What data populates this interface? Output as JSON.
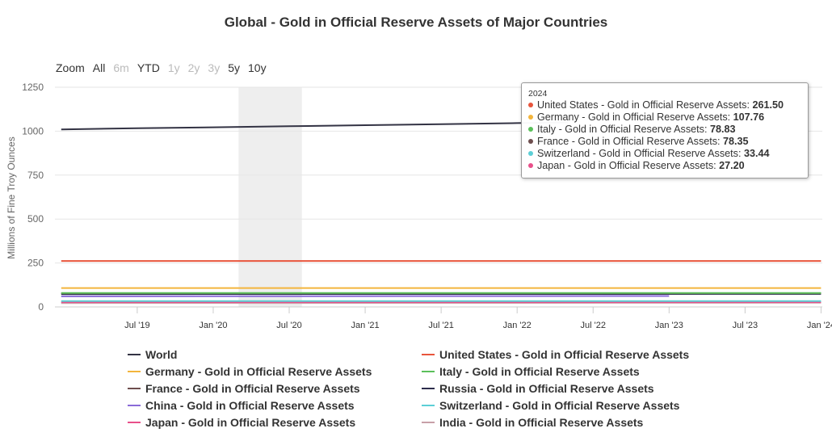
{
  "chart_data": {
    "type": "line",
    "title": "Global - Gold in Official Reserve Assets of Major Countries",
    "ylabel": "Millions of Fine Troy Ounces",
    "xlabel": "",
    "ylim": [
      0,
      1250
    ],
    "yticks": [
      "0",
      "250",
      "500",
      "750",
      "1000",
      "1250"
    ],
    "xticks": [
      "Jul '19",
      "Jan '20",
      "Jul '20",
      "Jan '21",
      "Jul '21",
      "Jan '22",
      "Jul '22",
      "Jan '23",
      "Jul '23",
      "Jan '24"
    ],
    "xrange": [
      "2019-01",
      "2024-01"
    ],
    "grid": true,
    "legend_position": "bottom",
    "series": [
      {
        "name": "World",
        "color": "#333344",
        "x": [
          "2019-01",
          "2019-07",
          "2020-01",
          "2020-07",
          "2021-01",
          "2021-07",
          "2022-01",
          "2022-05"
        ],
        "values": [
          1010,
          1017,
          1022,
          1028,
          1034,
          1040,
          1046,
          1050
        ]
      },
      {
        "name": "United States - Gold in Official Reserve Assets",
        "color": "#e8553c",
        "x": [
          "2019-01",
          "2024-01"
        ],
        "values": [
          261.5,
          261.5
        ]
      },
      {
        "name": "Germany - Gold in Official Reserve Assets",
        "color": "#f3b53c",
        "x": [
          "2019-01",
          "2024-01"
        ],
        "values": [
          107.76,
          107.76
        ]
      },
      {
        "name": "Italy - Gold in Official Reserve Assets",
        "color": "#5bc05b",
        "x": [
          "2019-01",
          "2024-01"
        ],
        "values": [
          78.83,
          78.83
        ]
      },
      {
        "name": "France - Gold in Official Reserve Assets",
        "color": "#6e4e4e",
        "x": [
          "2019-01",
          "2024-01"
        ],
        "values": [
          78.35,
          78.35
        ]
      },
      {
        "name": "Russia - Gold in Official Reserve Assets",
        "color": "#2c2c4c",
        "x": [
          "2019-01",
          "2024-01"
        ],
        "values": [
          73,
          74
        ]
      },
      {
        "name": "China - Gold in Official Reserve Assets",
        "color": "#8a6ad8",
        "x": [
          "2019-01",
          "2023-01"
        ],
        "values": [
          60,
          62
        ]
      },
      {
        "name": "Switzerland - Gold in Official Reserve Assets",
        "color": "#5ccfd6",
        "x": [
          "2019-01",
          "2024-01"
        ],
        "values": [
          33.44,
          33.44
        ]
      },
      {
        "name": "Japan - Gold in Official Reserve Assets",
        "color": "#e8508a",
        "x": [
          "2019-01",
          "2024-01"
        ],
        "values": [
          27.2,
          27.2
        ]
      },
      {
        "name": "India - Gold in Official Reserve Assets",
        "color": "#c8a0a8",
        "x": [
          "2019-01",
          "2024-01"
        ],
        "values": [
          22,
          24
        ]
      }
    ],
    "highlight_band": [
      "2020-03",
      "2020-08"
    ]
  },
  "zoom": {
    "label": "Zoom",
    "buttons": [
      {
        "label": "All",
        "enabled": true
      },
      {
        "label": "6m",
        "enabled": false
      },
      {
        "label": "YTD",
        "enabled": true
      },
      {
        "label": "1y",
        "enabled": false
      },
      {
        "label": "2y",
        "enabled": false
      },
      {
        "label": "3y",
        "enabled": false
      },
      {
        "label": "5y",
        "enabled": true
      },
      {
        "label": "10y",
        "enabled": true
      }
    ]
  },
  "tooltip": {
    "header": "2024",
    "rows": [
      {
        "label": "United States - Gold in Official Reserve Assets: ",
        "value": "261.50",
        "color": "#e8553c"
      },
      {
        "label": "Germany - Gold in Official Reserve Assets: ",
        "value": "107.76",
        "color": "#f3b53c"
      },
      {
        "label": "Italy - Gold in Official Reserve Assets: ",
        "value": "78.83",
        "color": "#5bc05b"
      },
      {
        "label": "France - Gold in Official Reserve Assets: ",
        "value": "78.35",
        "color": "#6e4e4e"
      },
      {
        "label": "Switzerland - Gold in Official Reserve Assets: ",
        "value": "33.44",
        "color": "#5ccfd6"
      },
      {
        "label": "Japan - Gold in Official Reserve Assets: ",
        "value": "27.20",
        "color": "#e8508a"
      }
    ]
  }
}
